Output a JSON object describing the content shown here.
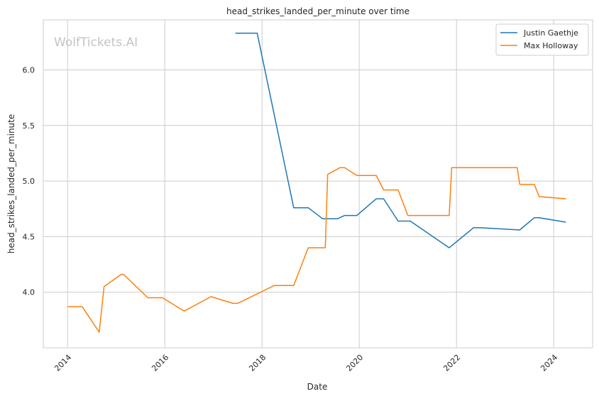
{
  "chart_data": {
    "type": "line",
    "title": "head_strikes_landed_per_minute over time",
    "xlabel": "Date",
    "ylabel": "head_strikes_landed_per_minute",
    "watermark": "WolfTickets.AI",
    "xlim": [
      2013.5,
      2024.8
    ],
    "ylim": [
      3.5,
      6.45
    ],
    "x_ticks": [
      2014,
      2016,
      2018,
      2020,
      2022,
      2024
    ],
    "x_tick_labels": [
      "2014",
      "2016",
      "2018",
      "2020",
      "2022",
      "2024"
    ],
    "y_ticks": [
      4.0,
      4.5,
      5.0,
      5.5,
      6.0
    ],
    "y_tick_labels": [
      "4.0",
      "4.5",
      "5.0",
      "5.5",
      "6.0"
    ],
    "grid": true,
    "legend_position": "top-right",
    "series": [
      {
        "name": "Justin Gaethje",
        "color": "#1f77b4",
        "x": [
          2017.45,
          2017.9,
          2018.65,
          2018.95,
          2019.25,
          2019.55,
          2019.7,
          2019.95,
          2020.35,
          2020.5,
          2020.8,
          2021.05,
          2021.85,
          2022.35,
          2022.5,
          2023.3,
          2023.6,
          2023.7,
          2024.25
        ],
        "values": [
          6.33,
          6.33,
          4.76,
          4.76,
          4.66,
          4.66,
          4.69,
          4.69,
          4.84,
          4.84,
          4.64,
          4.64,
          4.4,
          4.58,
          4.58,
          4.56,
          4.67,
          4.67,
          4.63
        ]
      },
      {
        "name": "Max Holloway",
        "color": "#ff7f0e",
        "x": [
          2014.0,
          2014.3,
          2014.65,
          2014.75,
          2015.1,
          2015.15,
          2015.65,
          2015.95,
          2016.4,
          2016.95,
          2017.4,
          2017.5,
          2018.25,
          2018.65,
          2018.95,
          2019.3,
          2019.35,
          2019.6,
          2019.7,
          2019.95,
          2020.35,
          2020.5,
          2020.8,
          2021.0,
          2021.85,
          2021.9,
          2022.35,
          2022.5,
          2023.25,
          2023.3,
          2023.6,
          2023.7,
          2024.25
        ],
        "values": [
          3.87,
          3.87,
          3.64,
          4.05,
          4.16,
          4.16,
          3.95,
          3.95,
          3.83,
          3.96,
          3.9,
          3.9,
          4.06,
          4.06,
          4.4,
          4.4,
          5.06,
          5.12,
          5.12,
          5.05,
          5.05,
          4.92,
          4.92,
          4.69,
          4.69,
          5.12,
          5.12,
          5.12,
          5.12,
          4.97,
          4.97,
          4.86,
          4.84
        ]
      }
    ]
  }
}
